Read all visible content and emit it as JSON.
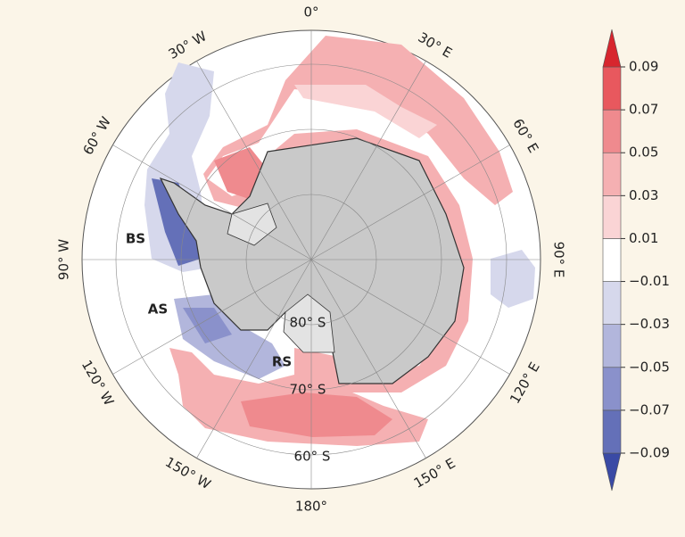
{
  "map": {
    "longitude_labels": [
      "0°",
      "30° E",
      "60° E",
      "90° E",
      "120° E",
      "150° E",
      "180°",
      "150° W",
      "120° W",
      "90° W",
      "60° W",
      "30° W"
    ],
    "latitude_labels": [
      "80° S",
      "70° S",
      "60° S"
    ],
    "regions": [
      "BS",
      "AS",
      "RS"
    ]
  },
  "colorbar": {
    "lim": [
      -0.09,
      0.09
    ],
    "ticks": [
      {
        "value": -0.09,
        "label": "−0.09"
      },
      {
        "value": -0.07,
        "label": "−0.07"
      },
      {
        "value": -0.05,
        "label": "−0.05"
      },
      {
        "value": -0.03,
        "label": "−0.03"
      },
      {
        "value": -0.01,
        "label": "−0.01"
      },
      0.01,
      0.03,
      0.05,
      0.07,
      0.09
    ],
    "colors": [
      "#3a4aa5",
      "#6470b8",
      "#8a91cb",
      "#b2b6dc",
      "#d6d8ec",
      "#ffffff",
      "#fad4d5",
      "#f5b0b2",
      "#ef8a8e",
      "#e8585e",
      "#d7262e"
    ]
  }
}
